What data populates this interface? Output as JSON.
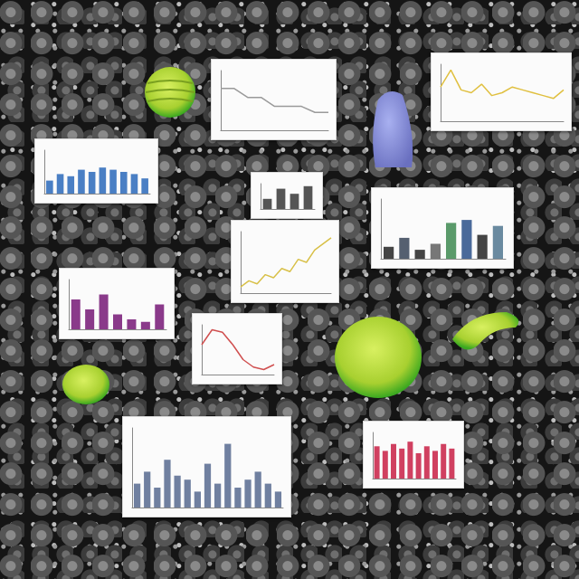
{
  "chart_data": [
    {
      "type": "bar",
      "values": [
        30,
        45,
        40,
        55,
        50,
        60,
        55,
        50,
        45,
        35
      ],
      "color": "#4a7fc4",
      "ylim": [
        0,
        100
      ],
      "grid": false,
      "tick_labels": false
    },
    {
      "type": "line",
      "values": [
        70,
        70,
        55,
        55,
        40,
        40,
        40,
        30,
        30
      ],
      "color": "#9a9a9a",
      "ylim": [
        0,
        100
      ],
      "grid": false,
      "tick_labels": false
    },
    {
      "type": "line",
      "values": [
        60,
        90,
        55,
        50,
        65,
        45,
        50,
        60,
        55,
        50,
        45,
        40,
        55
      ],
      "color": "#e0c040",
      "ylim": [
        0,
        100
      ],
      "grid": false,
      "tick_labels": false
    },
    {
      "type": "bar",
      "values": [
        40,
        80,
        60,
        90
      ],
      "color": "#555555",
      "ylim": [
        0,
        100
      ],
      "grid": false,
      "tick_labels": false
    },
    {
      "type": "bar",
      "values": [
        20,
        35,
        15,
        25,
        60,
        65,
        40,
        55
      ],
      "colors": [
        "#444444",
        "#556070",
        "#444444",
        "#777777",
        "#5a9a6a",
        "#4a6a9a",
        "#444444",
        "#6a8aa0"
      ],
      "ylim": [
        0,
        100
      ],
      "grid": false,
      "tick_labels": false
    },
    {
      "type": "line",
      "values": [
        10,
        20,
        15,
        30,
        25,
        40,
        35,
        55,
        50,
        70,
        80,
        90
      ],
      "color": "#d8c048",
      "ylim": [
        0,
        100
      ],
      "grid": false,
      "tick_labels": false
    },
    {
      "type": "bar",
      "values": [
        60,
        40,
        70,
        30,
        20,
        15,
        50
      ],
      "color": "#8a3a8a",
      "ylim": [
        0,
        100
      ],
      "grid": false,
      "tick_labels": false
    },
    {
      "type": "line",
      "values": [
        60,
        90,
        85,
        60,
        30,
        15,
        10,
        20
      ],
      "color": "#d05050",
      "ylim": [
        0,
        100
      ],
      "grid": false,
      "tick_labels": false
    },
    {
      "type": "bar",
      "values": [
        30,
        45,
        25,
        60,
        40,
        35,
        20,
        55,
        30,
        80,
        25,
        35,
        45,
        30,
        20
      ],
      "color": "#7080a0",
      "ylim": [
        0,
        100
      ],
      "grid": false,
      "tick_labels": false
    },
    {
      "type": "bar",
      "values": [
        70,
        60,
        75,
        65,
        80,
        55,
        70,
        60,
        75,
        65
      ],
      "color": "#d04060",
      "ylim": [
        0,
        100
      ],
      "grid": false,
      "tick_labels": false
    }
  ]
}
